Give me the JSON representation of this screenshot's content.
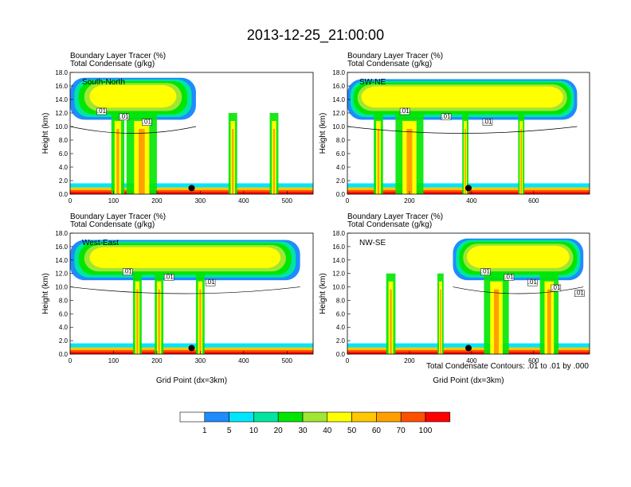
{
  "title": "2013-12-25_21:00:00",
  "footnote": "Total Condensate Contours: .01 to .01 by .000",
  "panel_left_label_1": "Boundary Layer Tracer   (%)",
  "panel_left_label_2": "Total Condensate   (g/kg)",
  "colorbar": {
    "labels": [
      "1",
      "5",
      "10",
      "20",
      "30",
      "40",
      "50",
      "60",
      "70",
      "100"
    ],
    "colors": [
      "#ffffff",
      "#1e8cff",
      "#00e6ff",
      "#00e6a0",
      "#00e600",
      "#a0e632",
      "#ffff00",
      "#ffc800",
      "#ffa000",
      "#ff5000",
      "#ff0000"
    ]
  },
  "chart_data": [
    {
      "type": "heatmap",
      "region": "South-North",
      "ylabel": "Height (km)",
      "xlabel": "",
      "xlim": [
        0,
        560
      ],
      "ylim": [
        0,
        18
      ],
      "xticks": [
        0,
        100,
        200,
        300,
        400,
        500
      ],
      "yticks": [
        "0.0",
        "2.0",
        "4.0",
        "6.0",
        "8.0",
        "10.0",
        "12.0",
        "14.0",
        "16.0",
        "18.0"
      ],
      "marker_x": 280,
      "contour_labels": [
        ".01",
        ".01",
        ".01"
      ],
      "anvil": {
        "x0": 0,
        "x1": 290,
        "base": 11,
        "top": 17.2
      },
      "cores": [
        {
          "x": 165,
          "w": 70
        },
        {
          "x": 110,
          "w": 30
        },
        {
          "x": 375,
          "w": 20
        },
        {
          "x": 470,
          "w": 20
        }
      ]
    },
    {
      "type": "heatmap",
      "region": "SW-NE",
      "ylabel": "Height (km)",
      "xlabel": "",
      "xlim": [
        0,
        780
      ],
      "ylim": [
        0,
        18
      ],
      "xticks": [
        0,
        200,
        400,
        600
      ],
      "yticks": [
        "0.0",
        "2.0",
        "4.0",
        "6.0",
        "8.0",
        "10.0",
        "12.0",
        "14.0",
        "16.0",
        "18.0"
      ],
      "marker_x": 390,
      "contour_labels": [
        ".01",
        ".01",
        ".01"
      ],
      "anvil": {
        "x0": 0,
        "x1": 740,
        "base": 11,
        "top": 17
      },
      "cores": [
        {
          "x": 200,
          "w": 90
        },
        {
          "x": 100,
          "w": 30
        },
        {
          "x": 380,
          "w": 20
        },
        {
          "x": 560,
          "w": 20
        }
      ]
    },
    {
      "type": "heatmap",
      "region": "West-East",
      "ylabel": "Height (km)",
      "xlabel": "Grid Point (dx=3km)",
      "xlim": [
        0,
        560
      ],
      "ylim": [
        0,
        18
      ],
      "xticks": [
        0,
        100,
        200,
        300,
        400,
        500
      ],
      "yticks": [
        "0.0",
        "2.0",
        "4.0",
        "6.0",
        "8.0",
        "10.0",
        "12.0",
        "14.0",
        "16.0",
        "18.0"
      ],
      "marker_x": 280,
      "contour_labels": [
        ".01",
        ".01",
        ".01"
      ],
      "anvil": {
        "x0": 0,
        "x1": 530,
        "base": 11,
        "top": 17
      },
      "cores": [
        {
          "x": 155,
          "w": 20
        },
        {
          "x": 205,
          "w": 20
        },
        {
          "x": 300,
          "w": 20
        }
      ]
    },
    {
      "type": "heatmap",
      "region": "NW-SE",
      "ylabel": "Height (km)",
      "xlabel": "Grid Point (dx=3km)",
      "xlim": [
        0,
        780
      ],
      "ylim": [
        0,
        18
      ],
      "xticks": [
        0,
        200,
        400,
        600
      ],
      "yticks": [
        "0.0",
        "2.0",
        "4.0",
        "6.0",
        "8.0",
        "10.0",
        "12.0",
        "14.0",
        "16.0",
        "18.0"
      ],
      "marker_x": 390,
      "contour_labels": [
        ".01",
        ".01",
        ".01",
        ".01",
        ".01"
      ],
      "anvil": {
        "x0": 340,
        "x1": 760,
        "base": 11,
        "top": 17.2
      },
      "cores": [
        {
          "x": 480,
          "w": 80
        },
        {
          "x": 650,
          "w": 60
        },
        {
          "x": 140,
          "w": 30
        },
        {
          "x": 300,
          "w": 20
        }
      ]
    }
  ]
}
